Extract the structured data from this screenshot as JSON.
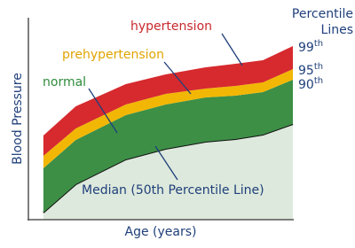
{
  "chart_data": {
    "type": "stacked_area",
    "x_label": "Age (years)",
    "y_label": "Blood Pressure",
    "legend_title": [
      "Percentile",
      "Lines"
    ],
    "x": [
      0,
      13,
      33,
      49,
      65,
      77,
      88,
      100
    ],
    "xlim": [
      -6,
      100
    ],
    "ylim": [
      0,
      114
    ],
    "series": [
      {
        "name": "Median (50th Percentile Line)",
        "color": "#dde9dc",
        "line_color": "#111111",
        "label_color": "#1f3f7a",
        "values": [
          4,
          20,
          34,
          40,
          44,
          45.5,
          48,
          54
        ]
      },
      {
        "name": "normal",
        "color": "#3d8f46",
        "label_color": "#2e8b3a",
        "values": [
          25,
          25,
          25,
          25,
          25,
          24.5,
          24,
          25
        ]
      },
      {
        "name": "prehypertension",
        "color": "#f2b705",
        "label_color": "#e0a400",
        "values": [
          7,
          6.5,
          6,
          6,
          5,
          5.5,
          5.5,
          6
        ]
      },
      {
        "name": "hypertension",
        "color": "#d62a2e",
        "label_color": "#c8282c",
        "values": [
          11.5,
          12.5,
          11.5,
          11,
          12,
          12.5,
          12.5,
          13
        ]
      }
    ],
    "percentile_labels": [
      {
        "series": 3,
        "number": "99",
        "suffix": "th"
      },
      {
        "series": 2,
        "number": "95",
        "suffix": "th"
      },
      {
        "series": 1,
        "number": "90",
        "suffix": "th"
      }
    ]
  }
}
